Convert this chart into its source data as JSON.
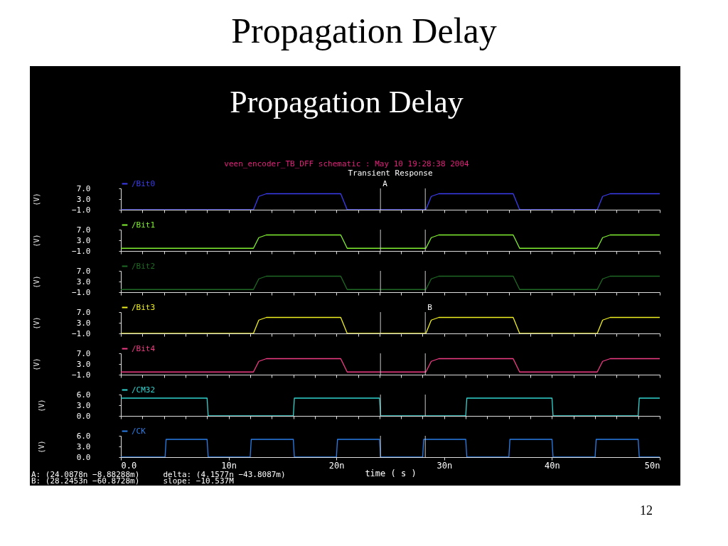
{
  "chart_data": [
    {
      "type": "line",
      "title": "Propagation Delay",
      "subtitle": "veen_encoder_TB_DFF schematic : May 10 19:28:38 2004",
      "annotations": [
        "Propagation Delay",
        "Transient Response"
      ],
      "ylabel": "(V)",
      "legend": "top left",
      "tick_labels": "y",
      "xlim": [
        0,
        50
      ],
      "ylim": [
        -1,
        7
      ],
      "yticks": [
        {
          "value": 7,
          "label": "7.0"
        },
        {
          "value": 3,
          "label": "3.0"
        },
        {
          "value": -1,
          "label": "−1.0"
        }
      ],
      "ref_lines": [
        {
          "axis": "x",
          "value": 24.0878,
          "label": "A",
          "color": "#c8c8c8"
        },
        {
          "axis": "x",
          "value": 28.2453,
          "label": null,
          "color": "#c8c8c8"
        }
      ],
      "series": [
        {
          "name": "/Bit0",
          "color": "#3c3cf0",
          "x": [
            0,
            12.3,
            12.8,
            13.5,
            20.4,
            21.0,
            28.3,
            28.8,
            29.5,
            36.4,
            37.0,
            44.2,
            44.7,
            45.4,
            50
          ],
          "values": [
            -1,
            -1,
            4,
            5,
            5,
            -1,
            -1,
            4,
            5,
            5,
            -1,
            -1,
            4,
            5,
            5
          ]
        }
      ]
    },
    {
      "type": "line",
      "ylabel": "(V)",
      "legend": "top left",
      "tick_labels": "y",
      "xlim": [
        0,
        50
      ],
      "ylim": [
        -1,
        7
      ],
      "yticks": [
        {
          "value": 7,
          "label": "7.0"
        },
        {
          "value": 3,
          "label": "3.0"
        },
        {
          "value": -1,
          "label": "−1.0"
        }
      ],
      "ref_lines": [
        {
          "axis": "x",
          "value": 24.0878,
          "label": null,
          "color": "#c8c8c8"
        },
        {
          "axis": "x",
          "value": 28.2453,
          "label": null,
          "color": "#c8c8c8"
        }
      ],
      "series": [
        {
          "name": "/Bit1",
          "color": "#80f030",
          "x": [
            0,
            12.3,
            12.8,
            13.5,
            20.4,
            21.0,
            28.3,
            28.8,
            29.5,
            36.4,
            37.0,
            44.2,
            44.7,
            45.4,
            50
          ],
          "values": [
            0,
            0,
            4,
            5,
            5,
            0,
            0,
            4,
            5,
            5,
            0,
            0,
            4,
            5,
            5
          ]
        }
      ]
    },
    {
      "type": "line",
      "ylabel": "(V)",
      "legend": "top left",
      "tick_labels": "y",
      "xlim": [
        0,
        50
      ],
      "ylim": [
        -1,
        7
      ],
      "yticks": [
        {
          "value": 7,
          "label": "7.0"
        },
        {
          "value": 3,
          "label": "3.0"
        },
        {
          "value": -1,
          "label": "−1.0"
        }
      ],
      "ref_lines": [
        {
          "axis": "x",
          "value": 24.0878,
          "label": null,
          "color": "#c8c8c8"
        },
        {
          "axis": "x",
          "value": 28.2453,
          "label": null,
          "color": "#c8c8c8"
        }
      ],
      "series": [
        {
          "name": "/Bit2",
          "color": "#1f6a24",
          "x": [
            0,
            12.3,
            12.8,
            13.5,
            20.4,
            21.0,
            28.3,
            28.8,
            29.5,
            36.4,
            37.0,
            44.2,
            44.7,
            45.4,
            50
          ],
          "values": [
            0,
            0,
            4,
            5,
            5,
            0,
            0,
            4,
            5,
            5,
            0,
            0,
            4,
            5,
            5
          ]
        }
      ]
    },
    {
      "type": "line",
      "ylabel": "(V)",
      "legend": "top left",
      "tick_labels": "y",
      "xlim": [
        0,
        50
      ],
      "ylim": [
        -1,
        7
      ],
      "yticks": [
        {
          "value": 7,
          "label": "7.0"
        },
        {
          "value": 3,
          "label": "3.0"
        },
        {
          "value": -1,
          "label": "−1.0"
        }
      ],
      "ref_lines": [
        {
          "axis": "x",
          "value": 24.0878,
          "label": null,
          "color": "#c8c8c8"
        },
        {
          "axis": "x",
          "value": 28.2453,
          "label": "B",
          "color": "#c8c8c8"
        }
      ],
      "series": [
        {
          "name": "/Bit3",
          "color": "#f0f020",
          "x": [
            0,
            12.3,
            12.8,
            13.5,
            20.4,
            21.0,
            28.3,
            28.8,
            29.5,
            36.4,
            37.0,
            44.2,
            44.7,
            45.4,
            50
          ],
          "values": [
            -1,
            -1,
            4,
            5,
            5,
            -1,
            -1,
            4,
            5,
            5,
            -1,
            -1,
            4,
            5,
            5
          ]
        }
      ]
    },
    {
      "type": "line",
      "ylabel": "(V)",
      "legend": "top left",
      "tick_labels": "y",
      "xlim": [
        0,
        50
      ],
      "ylim": [
        -1,
        7
      ],
      "yticks": [
        {
          "value": 7,
          "label": "7.0"
        },
        {
          "value": 3,
          "label": "3.0"
        },
        {
          "value": -1,
          "label": "−1.0"
        }
      ],
      "ref_lines": [
        {
          "axis": "x",
          "value": 24.0878,
          "label": null,
          "color": "#c8c8c8"
        },
        {
          "axis": "x",
          "value": 28.2453,
          "label": null,
          "color": "#c8c8c8"
        }
      ],
      "series": [
        {
          "name": "/Bit4",
          "color": "#f03c84",
          "x": [
            0,
            12.3,
            12.8,
            13.5,
            20.4,
            21.0,
            28.3,
            28.8,
            29.5,
            36.4,
            37.0,
            44.2,
            44.7,
            45.4,
            50
          ],
          "values": [
            0,
            0,
            4,
            5,
            5,
            0,
            0,
            4,
            5,
            5,
            0,
            0,
            4,
            5,
            5
          ]
        }
      ]
    },
    {
      "type": "line",
      "ylabel": "(V)",
      "legend": "top left",
      "tick_labels": "y",
      "xlim": [
        0,
        50
      ],
      "ylim": [
        0,
        6
      ],
      "yticks": [
        {
          "value": 6,
          "label": "6.0"
        },
        {
          "value": 3,
          "label": "3.0"
        },
        {
          "value": 0,
          "label": "0.0"
        }
      ],
      "ref_lines": [
        {
          "axis": "x",
          "value": 24.0878,
          "label": null,
          "color": "#c8c8c8"
        },
        {
          "axis": "x",
          "value": 28.2453,
          "label": null,
          "color": "#c8c8c8"
        }
      ],
      "series": [
        {
          "name": "/CM32",
          "color": "#30d4d0",
          "x": [
            0,
            8.0,
            8.1,
            16.0,
            16.1,
            24.0,
            24.1,
            32.0,
            32.1,
            40.0,
            40.1,
            48.0,
            48.1,
            50
          ],
          "values": [
            5,
            5,
            0,
            0,
            5,
            5,
            0,
            0,
            5,
            5,
            0,
            0,
            5,
            5
          ]
        }
      ]
    },
    {
      "type": "line",
      "ylabel": "(V)",
      "xlabel": "time ( s )",
      "legend": "top left",
      "annotations": [
        "A: (24.0878n −8.88288m)",
        "B: (28.2453n −60.8728m)",
        "delta: (4.1577n −43.8087m)",
        "slope: −10.537M",
        "12"
      ],
      "xlim": [
        0,
        50
      ],
      "xticks": [
        {
          "value": 0,
          "label": "0.0"
        },
        {
          "value": 10,
          "label": "10n"
        },
        {
          "value": 20,
          "label": "20n"
        },
        {
          "value": 30,
          "label": "30n"
        },
        {
          "value": 40,
          "label": "40n"
        },
        {
          "value": 50,
          "label": "50n"
        }
      ],
      "ylim": [
        0,
        6
      ],
      "yticks": [
        {
          "value": 6,
          "label": "6.0"
        },
        {
          "value": 3,
          "label": "3.0"
        },
        {
          "value": 0,
          "label": "0.0"
        }
      ],
      "ref_lines": [
        {
          "axis": "x",
          "value": 24.0878,
          "label": null,
          "color": "#c8c8c8"
        },
        {
          "axis": "x",
          "value": 28.2453,
          "label": null,
          "color": "#c8c8c8"
        }
      ],
      "series": [
        {
          "name": "/CK",
          "color": "#2a7ee8",
          "x": [
            0,
            4.1,
            4.2,
            8.0,
            8.1,
            12.0,
            12.1,
            16.0,
            16.1,
            20.0,
            20.1,
            24.0,
            24.1,
            28.0,
            28.1,
            32.0,
            32.1,
            36.0,
            36.1,
            40.0,
            40.1,
            44.0,
            44.1,
            48.0,
            48.1,
            50
          ],
          "values": [
            0,
            0,
            5,
            5,
            0,
            0,
            5,
            5,
            0,
            0,
            5,
            5,
            0,
            0,
            5,
            5,
            0,
            0,
            5,
            5,
            0,
            0,
            5,
            5,
            0,
            0
          ]
        }
      ]
    }
  ]
}
